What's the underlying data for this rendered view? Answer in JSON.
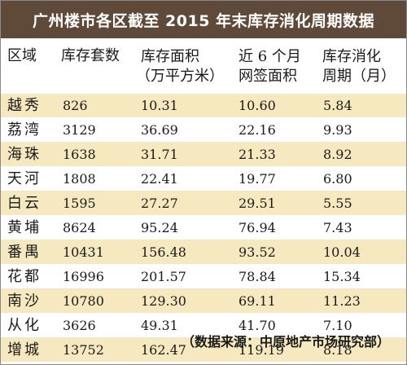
{
  "title": "广州楼市各区截至 2015 年末库存消化周期数据",
  "columns": [
    {
      "line1": "区域",
      "line2": ""
    },
    {
      "line1": "库存套数",
      "line2": ""
    },
    {
      "line1": "库存面积",
      "line2": "（万平方米）"
    },
    {
      "line1": "近 6 个月",
      "line2": "网签面积"
    },
    {
      "line1": "库存消化",
      "line2": "周期（月）"
    }
  ],
  "rows": [
    {
      "district": "越秀",
      "units": "826",
      "area": "10.31",
      "signed": "10.60",
      "cycle": "5.84"
    },
    {
      "district": "荔湾",
      "units": "3129",
      "area": "36.69",
      "signed": "22.16",
      "cycle": "9.93"
    },
    {
      "district": "海珠",
      "units": "1638",
      "area": "31.71",
      "signed": "21.33",
      "cycle": "8.92"
    },
    {
      "district": "天河",
      "units": "1808",
      "area": "22.41",
      "signed": "19.77",
      "cycle": "6.80"
    },
    {
      "district": "白云",
      "units": "1595",
      "area": "27.27",
      "signed": "29.51",
      "cycle": "5.55"
    },
    {
      "district": "黄埔",
      "units": "8624",
      "area": "95.24",
      "signed": "76.94",
      "cycle": "7.43"
    },
    {
      "district": "番禺",
      "units": "10431",
      "area": "156.48",
      "signed": "93.52",
      "cycle": "10.04"
    },
    {
      "district": "花都",
      "units": "16996",
      "area": "201.57",
      "signed": "78.84",
      "cycle": "15.34"
    },
    {
      "district": "南沙",
      "units": "10780",
      "area": "129.30",
      "signed": "69.11",
      "cycle": "11.23"
    },
    {
      "district": "从化",
      "units": "3626",
      "area": "49.31",
      "signed": "41.70",
      "cycle": "7.10"
    },
    {
      "district": "增城",
      "units": "13752",
      "area": "162.47",
      "signed": "119.19",
      "cycle": "8.18"
    }
  ],
  "source": "（数据来源：中原地产市场研究部）",
  "colors": {
    "title_bg": "#5f4a3a",
    "row_highlight": "#f6e9bf"
  }
}
